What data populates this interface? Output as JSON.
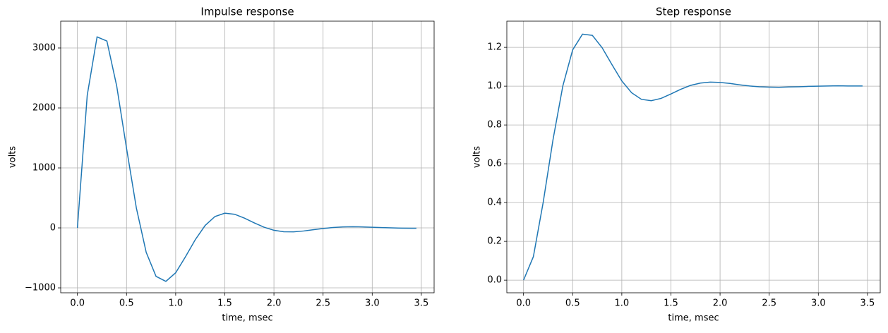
{
  "chart_data": [
    {
      "type": "line",
      "title": "Impulse response",
      "xlabel": "time, msec",
      "ylabel": "volts",
      "color": "#1f77b4",
      "grid": true,
      "x": [
        0,
        0.1,
        0.2,
        0.3,
        0.4,
        0.5,
        0.6,
        0.7,
        0.8,
        0.9,
        1.0,
        1.1,
        1.2,
        1.3,
        1.4,
        1.5,
        1.6,
        1.7,
        1.8,
        1.9,
        2.0,
        2.1,
        2.2,
        2.3,
        2.4,
        2.5,
        2.6,
        2.7,
        2.8,
        2.9,
        3.0,
        3.1,
        3.2,
        3.3,
        3.4,
        3.45
      ],
      "values": [
        0,
        2212,
        3185,
        3116,
        2364,
        1326,
        331,
        -407,
        -808,
        -892,
        -748,
        -481,
        -195,
        41,
        190,
        245,
        227,
        163,
        83,
        11,
        -40,
        -65,
        -66,
        -52,
        -31,
        -10,
        6,
        16,
        19,
        17,
        11,
        5,
        0,
        -4,
        -5,
        -5
      ],
      "xlim": [
        -0.17,
        3.63
      ],
      "ylim": [
        -1082,
        3447
      ],
      "xticks": [
        {
          "value": 0,
          "label": "0.0"
        },
        0.5,
        {
          "value": 1,
          "label": "1.0"
        },
        1.5,
        {
          "value": 2,
          "label": "2.0"
        },
        2.5,
        {
          "value": 3,
          "label": "3.0"
        },
        3.5
      ],
      "yticks": [
        {
          "value": -1000,
          "label": "−1000"
        },
        0,
        1000,
        2000,
        3000
      ]
    },
    {
      "type": "line",
      "title": "Step response",
      "xlabel": "time, msec",
      "ylabel": "volts",
      "color": "#1f77b4",
      "grid": true,
      "x": [
        0,
        0.1,
        0.2,
        0.3,
        0.4,
        0.5,
        0.6,
        0.7,
        0.8,
        0.9,
        1.0,
        1.1,
        1.2,
        1.3,
        1.4,
        1.5,
        1.6,
        1.7,
        1.8,
        1.9,
        2.0,
        2.1,
        2.2,
        2.3,
        2.4,
        2.5,
        2.6,
        2.7,
        2.8,
        2.9,
        3.0,
        3.1,
        3.2,
        3.3,
        3.4,
        3.45
      ],
      "values": [
        0,
        0.121,
        0.401,
        0.724,
        1.001,
        1.187,
        1.268,
        1.262,
        1.198,
        1.111,
        1.027,
        0.966,
        0.932,
        0.925,
        0.937,
        0.96,
        0.984,
        1.004,
        1.016,
        1.021,
        1.019,
        1.014,
        1.007,
        1.001,
        0.997,
        0.995,
        0.994,
        0.996,
        0.997,
        0.999,
        1.0,
        1.001,
        1.002,
        1.001,
        1.001,
        1.001
      ],
      "xlim": [
        -0.17,
        3.63
      ],
      "ylim": [
        -0.065,
        1.335
      ],
      "xticks": [
        {
          "value": 0,
          "label": "0.0"
        },
        0.5,
        {
          "value": 1,
          "label": "1.0"
        },
        1.5,
        {
          "value": 2,
          "label": "2.0"
        },
        2.5,
        {
          "value": 3,
          "label": "3.0"
        },
        3.5
      ],
      "yticks": [
        {
          "value": 0,
          "label": "0.0"
        },
        0.2,
        0.4,
        0.6,
        0.8,
        {
          "value": 1,
          "label": "1.0"
        },
        1.2
      ]
    }
  ]
}
